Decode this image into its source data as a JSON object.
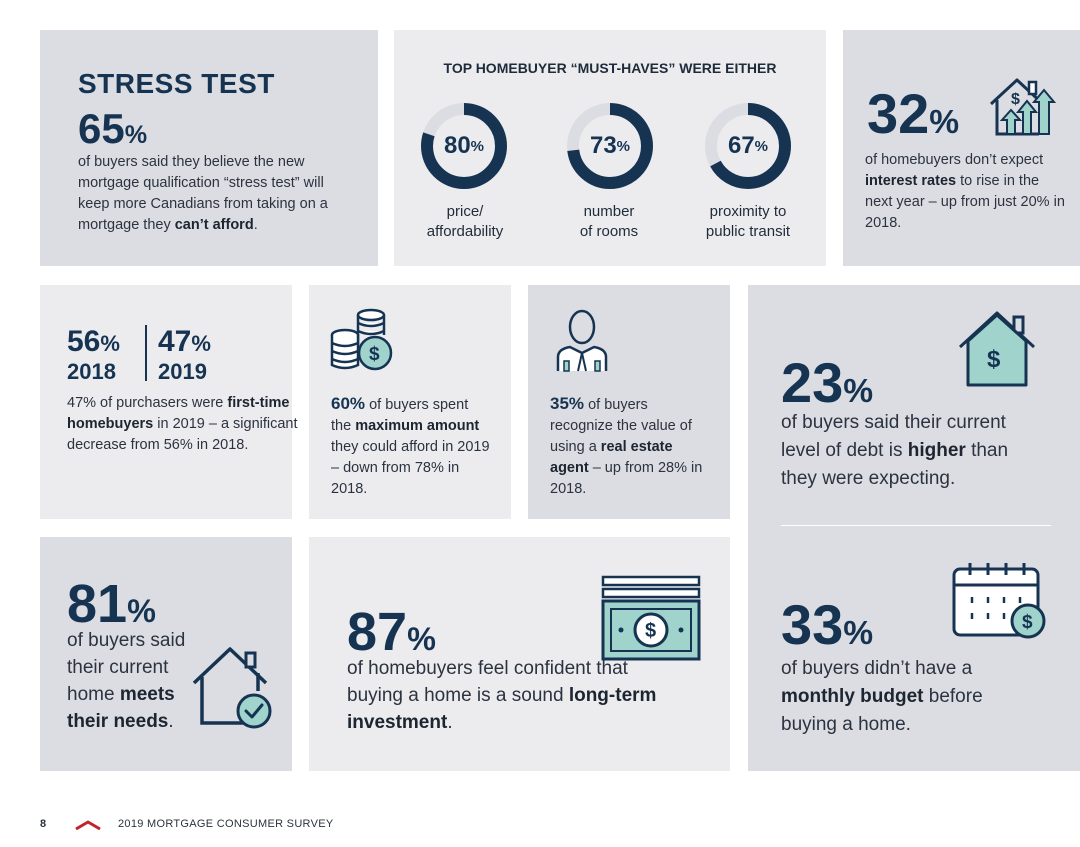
{
  "stress_test": {
    "heading": "STRESS TEST",
    "value": "65",
    "unit": "%",
    "text_before": "of buyers said they believe the new mortgage qualification “stress test” will keep more Canadians from taking on a mortgage they ",
    "text_bold": "can’t afford",
    "text_after": "."
  },
  "must_haves": {
    "heading": "TOP HOMEBUYER “MUST-HAVES” WERE EITHER",
    "items": [
      {
        "value": "80",
        "unit": "%",
        "fraction": 0.8,
        "label_line1": "price/",
        "label_line2": "affordability"
      },
      {
        "value": "73",
        "unit": "%",
        "fraction": 0.73,
        "label_line1": "number",
        "label_line2": "of rooms"
      },
      {
        "value": "67",
        "unit": "%",
        "fraction": 0.67,
        "label_line1": "proximity to",
        "label_line2": "public transit"
      }
    ]
  },
  "interest": {
    "value": "32",
    "unit": "%",
    "icon": "rising-house-icon",
    "text_before": "of homebuyers don’t expect ",
    "text_bold": "interest rates",
    "text_after": " to rise in the next year – up from just 20% in 2018."
  },
  "first_time": {
    "left_value": "56",
    "left_unit": "%",
    "left_year": "2018",
    "right_value": "47",
    "right_unit": "%",
    "right_year": "2019",
    "text_before": "47% of purchasers were ",
    "text_bold": "first-time homebuyers",
    "text_after": " in 2019 – a significant decrease from 56% in 2018."
  },
  "maximum": {
    "icon": "coins-icon",
    "lead_value": "60",
    "lead_unit": "%",
    "text_a": " of buyers spent the ",
    "text_bold": "maximum amount",
    "text_b": " they could afford in 2019 – down from 78% in 2018."
  },
  "agent": {
    "icon": "agent-icon",
    "lead_value": "35",
    "lead_unit": "%",
    "text_a": " of buyers recognize the value of using a ",
    "text_bold": "real estate agent",
    "text_b": " – up from 28% in 2018."
  },
  "debt": {
    "value": "23",
    "unit": "%",
    "icon": "house-dollar-icon",
    "text_before": "of buyers said their current level of debt is ",
    "text_bold": "higher",
    "text_after": " than they were expecting."
  },
  "budget": {
    "value": "33",
    "unit": "%",
    "icon": "calendar-dollar-icon",
    "text_before": "of buyers didn’t have a ",
    "text_bold": "monthly budget",
    "text_after": " before buying a home."
  },
  "meets": {
    "value": "81",
    "unit": "%",
    "icon": "house-check-icon",
    "text_before": "of buyers said their current home ",
    "text_bold": "meets their needs",
    "text_after": "."
  },
  "invest": {
    "value": "87",
    "unit": "%",
    "icon": "cash-icon",
    "text_before": "of homebuyers feel confident that buying a home is a sound ",
    "text_bold": "long-term investment",
    "text_after": "."
  },
  "footer": {
    "page": "8",
    "title": "2019 MORTGAGE CONSUMER SURVEY"
  },
  "colors": {
    "navy": "#163452",
    "teal": "#9fd3cc",
    "accent_red": "#c0272d"
  }
}
